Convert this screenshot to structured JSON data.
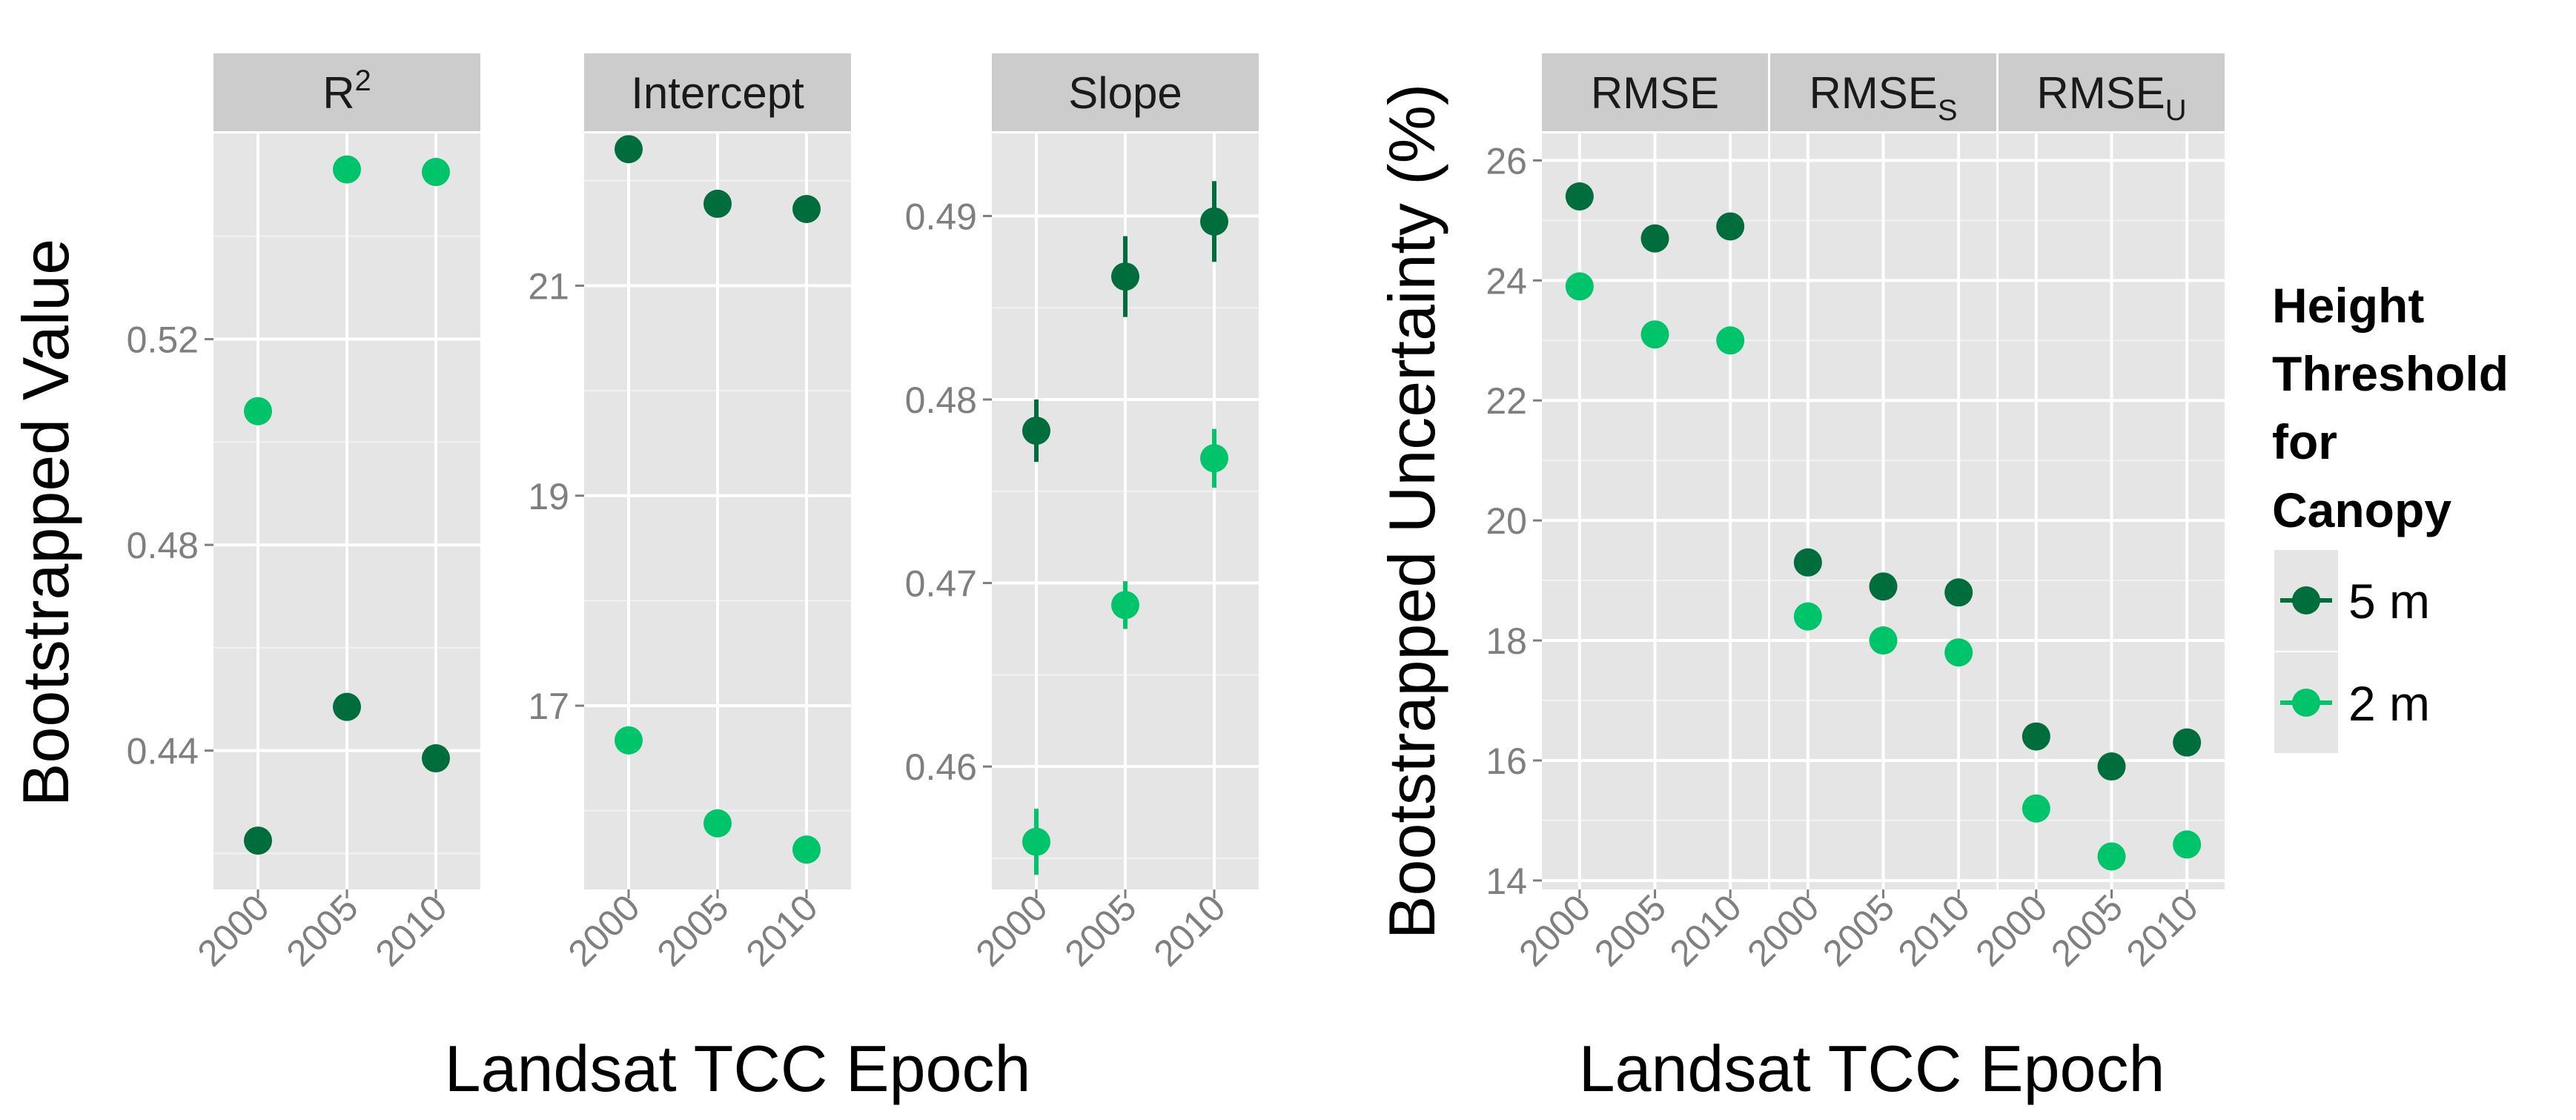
{
  "colors": {
    "panel_bg": "#e5e5e5",
    "strip_bg": "#cccccc",
    "grid": "#ffffff",
    "tick_text": "#7f7f7f",
    "text": "#000000"
  },
  "legend": {
    "title_lines": [
      "Height",
      "Threshold",
      "for",
      "Canopy"
    ],
    "entries": [
      {
        "label": "5 m",
        "color": "#006d3c"
      },
      {
        "label": "2 m",
        "color": "#00c46a"
      }
    ],
    "placement": "right"
  },
  "left_figure": {
    "ylabel": "Bootstrapped Value",
    "xlabel": "Landsat TCC Epoch"
  },
  "right_figure": {
    "ylabel": "Bootstrapped Uncertainty (%)",
    "xlabel": "Landsat TCC Epoch"
  },
  "chart_data": [
    {
      "type": "scatter",
      "facet": "R²",
      "facet_main": "R",
      "facet_sup": "2",
      "categories": [
        "2000",
        "2005",
        "2010"
      ],
      "ylim": [
        0.413,
        0.56
      ],
      "yticks": [
        0.44,
        0.48,
        0.52
      ],
      "ytick_labels": [
        "0.44",
        "0.48",
        "0.52"
      ],
      "grid": true,
      "series": [
        {
          "name": "5 m",
          "color": "#006d3c",
          "values": [
            0.4225,
            0.4485,
            0.4385
          ],
          "errors": [
            0.0,
            0.0,
            0.0
          ]
        },
        {
          "name": "2 m",
          "color": "#00c46a",
          "values": [
            0.506,
            0.553,
            0.5525
          ],
          "errors": [
            0.0,
            0.0,
            0.0
          ]
        }
      ]
    },
    {
      "type": "scatter",
      "facet": "Intercept",
      "categories": [
        "2000",
        "2005",
        "2010"
      ],
      "ylim": [
        15.25,
        22.45
      ],
      "yticks": [
        17,
        19,
        21
      ],
      "ytick_labels": [
        "17",
        "19",
        "21"
      ],
      "grid": true,
      "series": [
        {
          "name": "5 m",
          "color": "#006d3c",
          "values": [
            22.3,
            21.78,
            21.73
          ],
          "errors": [
            0.0,
            0.0,
            0.0
          ]
        },
        {
          "name": "2 m",
          "color": "#00c46a",
          "values": [
            16.67,
            15.88,
            15.63
          ],
          "errors": [
            0.0,
            0.0,
            0.0
          ]
        }
      ]
    },
    {
      "type": "scatter",
      "facet": "Slope",
      "categories": [
        "2000",
        "2005",
        "2010"
      ],
      "ylim": [
        0.4533,
        0.4945
      ],
      "yticks": [
        0.46,
        0.47,
        0.48,
        0.49
      ],
      "ytick_labels": [
        "0.46",
        "0.47",
        "0.48",
        "0.49"
      ],
      "grid": true,
      "series": [
        {
          "name": "5 m",
          "color": "#006d3c",
          "values": [
            0.4783,
            0.4867,
            0.4897
          ],
          "errors": [
            0.0017,
            0.0022,
            0.0022
          ]
        },
        {
          "name": "2 m",
          "color": "#00c46a",
          "values": [
            0.4559,
            0.4688,
            0.4768
          ],
          "errors": [
            0.0018,
            0.0013,
            0.0016
          ]
        }
      ]
    },
    {
      "type": "scatter",
      "facet": "RMSE",
      "facet_main": "RMSE",
      "facet_sub": "",
      "categories": [
        "2000",
        "2005",
        "2010"
      ],
      "ylim": [
        13.85,
        26.45
      ],
      "yticks": [
        14,
        16,
        18,
        20,
        22,
        24,
        26
      ],
      "ytick_labels": [
        "14",
        "16",
        "18",
        "20",
        "22",
        "24",
        "26"
      ],
      "grid": true,
      "series": [
        {
          "name": "5 m",
          "color": "#006d3c",
          "values": [
            25.4,
            24.7,
            24.9
          ]
        },
        {
          "name": "2 m",
          "color": "#00c46a",
          "values": [
            23.9,
            23.1,
            23.0
          ]
        }
      ]
    },
    {
      "type": "scatter",
      "facet": "RMSES",
      "facet_main": "RMSE",
      "facet_sub": "S",
      "categories": [
        "2000",
        "2005",
        "2010"
      ],
      "ylim": [
        13.85,
        26.45
      ],
      "grid": true,
      "series": [
        {
          "name": "5 m",
          "color": "#006d3c",
          "values": [
            19.3,
            18.9,
            18.8
          ]
        },
        {
          "name": "2 m",
          "color": "#00c46a",
          "values": [
            18.4,
            18.0,
            17.8
          ]
        }
      ]
    },
    {
      "type": "scatter",
      "facet": "RMSEU",
      "facet_main": "RMSE",
      "facet_sub": "U",
      "categories": [
        "2000",
        "2005",
        "2010"
      ],
      "ylim": [
        13.85,
        26.45
      ],
      "grid": true,
      "series": [
        {
          "name": "5 m",
          "color": "#006d3c",
          "values": [
            16.4,
            15.9,
            16.3
          ]
        },
        {
          "name": "2 m",
          "color": "#00c46a",
          "values": [
            15.2,
            14.4,
            14.6
          ]
        }
      ]
    }
  ]
}
